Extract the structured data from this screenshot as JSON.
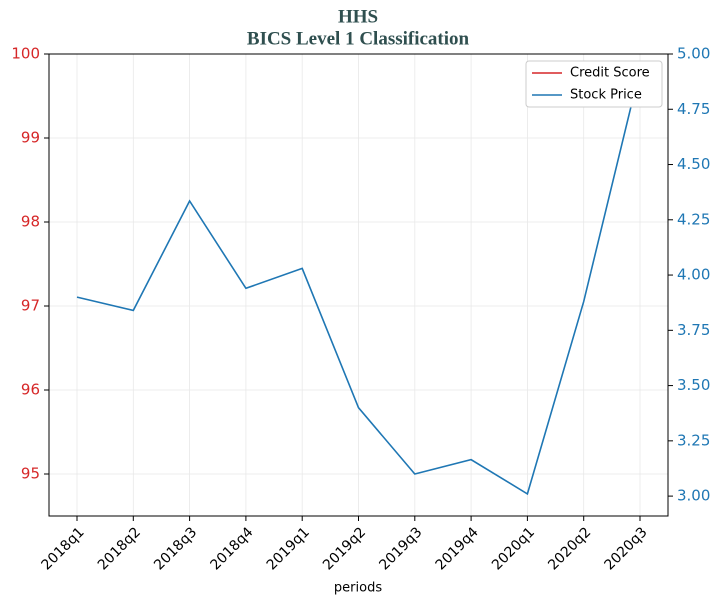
{
  "chart_data": {
    "type": "line",
    "title": "HHS",
    "subtitle": "BICS Level 1 Classification",
    "xlabel": "periods",
    "categories": [
      "2018q1",
      "2018q2",
      "2018q3",
      "2018q4",
      "2019q1",
      "2019q2",
      "2019q3",
      "2019q4",
      "2020q1",
      "2020q2",
      "2020q3"
    ],
    "series": [
      {
        "name": "Credit Score",
        "color": "#d62728",
        "values": [
          null,
          null,
          null,
          null,
          null,
          null,
          null,
          null,
          null,
          null,
          null
        ]
      },
      {
        "name": "Stock Price",
        "color": "#1f77b4",
        "axis": "y2",
        "values": [
          3.9,
          3.84,
          4.335,
          3.94,
          4.03,
          3.4,
          3.1,
          3.165,
          3.01,
          3.88,
          4.93
        ]
      }
    ],
    "ylim": [
      94.5,
      100
    ],
    "yticks": [
      95,
      96,
      97,
      98,
      99,
      100
    ],
    "y2lim": [
      2.91,
      5.0
    ],
    "y2ticks": [
      {
        "value": 3,
        "label": "3.00"
      },
      {
        "value": 3.25,
        "label": "3.25"
      },
      {
        "value": 3.5,
        "label": "3.50"
      },
      {
        "value": 3.75,
        "label": "3.75"
      },
      {
        "value": 4,
        "label": "4.00"
      },
      {
        "value": 4.25,
        "label": "4.25"
      },
      {
        "value": 4.5,
        "label": "4.50"
      },
      {
        "value": 4.75,
        "label": "4.75"
      },
      {
        "value": 5,
        "label": "5.00"
      }
    ],
    "grid": true,
    "legend": "upper right"
  }
}
